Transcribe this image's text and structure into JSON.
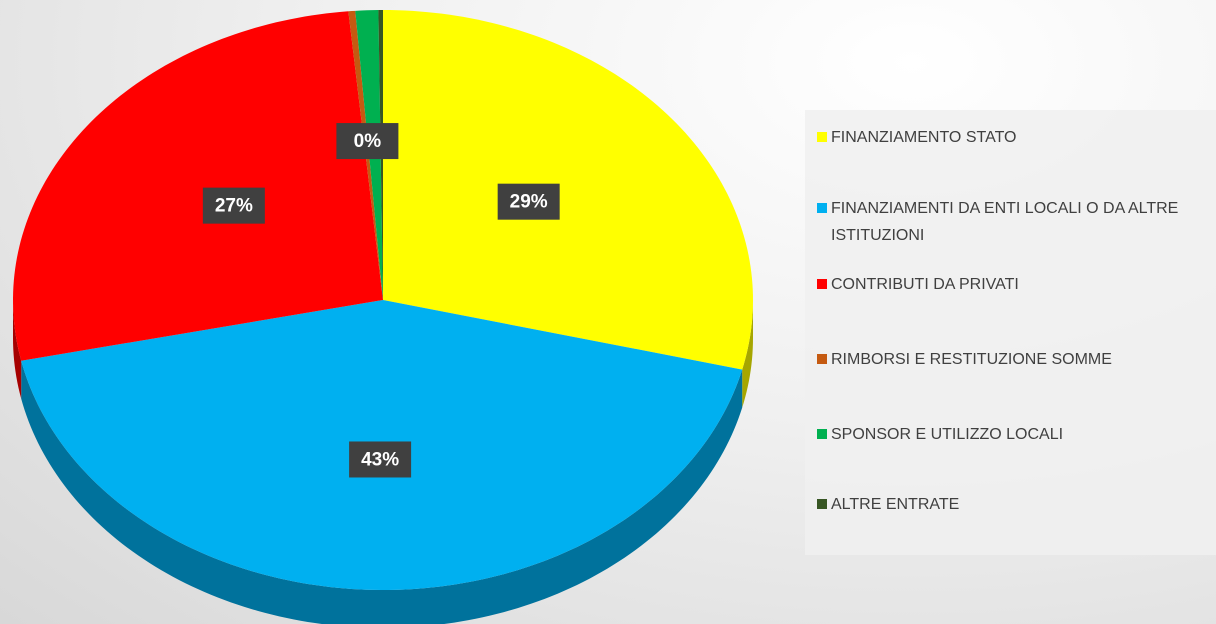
{
  "chart_data": {
    "type": "pie",
    "categories": [
      "FINANZIAMENTO STATO",
      "FINANZIAMENTI DA ENTI LOCALI O DA ALTRE ISTITUZIONI",
      "CONTRIBUTI DA PRIVATI",
      "RIMBORSI E RESTITUZIONE SOMME",
      "SPONSOR E UTILIZZO LOCALI",
      "ALTRE ENTRATE"
    ],
    "values": [
      29,
      43,
      27,
      0.3,
      1,
      0.2
    ],
    "value_labels": [
      "29%",
      "43%",
      "27%",
      "0%",
      null,
      null
    ],
    "colors": [
      "#ffff00",
      "#00b0f0",
      "#ff0000",
      "#c55a11",
      "#00b050",
      "#375623"
    ],
    "start_angle": 0,
    "direction": "clockwise",
    "3d": true
  }
}
